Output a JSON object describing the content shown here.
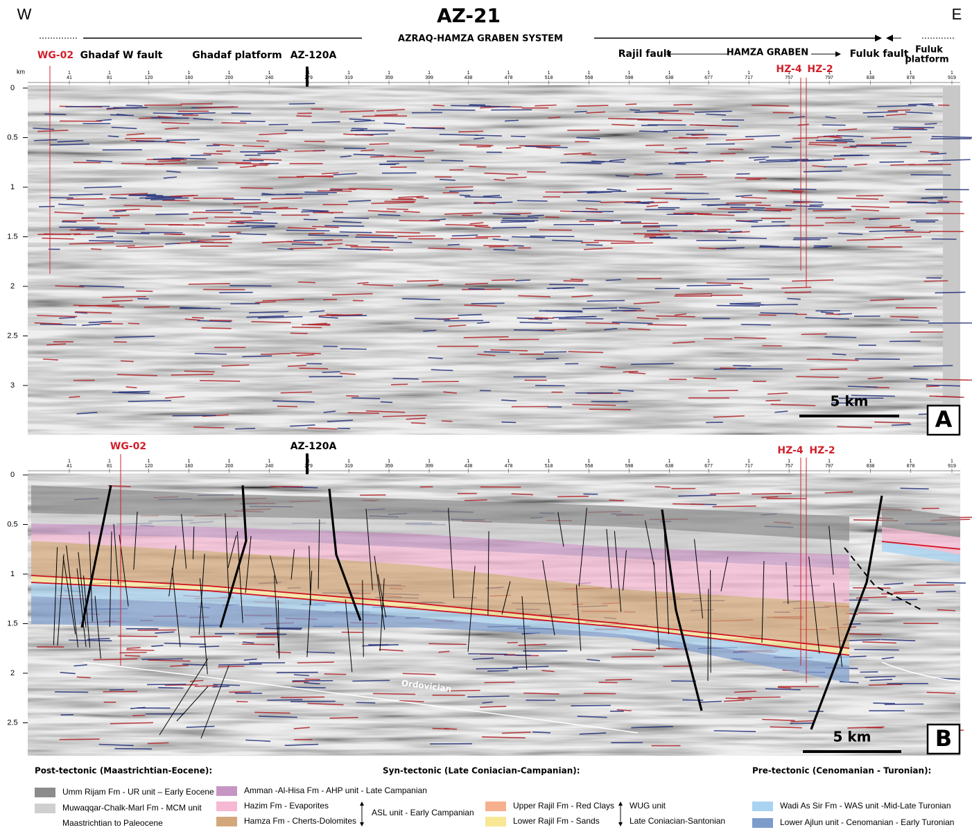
{
  "header": {
    "west": "W",
    "east": "E",
    "title": "AZ-21",
    "subtitle": "AZRAQ-HAMZA GRABEN SYSTEM"
  },
  "traces": {
    "prefix": "1",
    "ticks": [
      41,
      81,
      120,
      160,
      200,
      240,
      279,
      319,
      359,
      399,
      438,
      478,
      518,
      558,
      598,
      638,
      677,
      717,
      757,
      797,
      838,
      878,
      919
    ]
  },
  "panel_a": {
    "unit": "km",
    "depth_ticks": [
      0,
      0.5,
      1,
      1.5,
      2,
      2.5,
      3
    ],
    "labels": {
      "wg02": "WG-02",
      "ghadaf_w_fault": "Ghadaf W fault",
      "ghadaf_platform": "Ghadaf platform",
      "az120a": "AZ-120A",
      "rajil_fault": "Rajil fault",
      "hamza_graben": "HAMZA GRABEN",
      "fuluk_fault": "Fuluk fault",
      "fuluk_platform": [
        "Fuluk",
        "platform"
      ],
      "hz4": "HZ-4",
      "hz2": "HZ-2"
    },
    "scale_bar": "5 km",
    "letter": "A"
  },
  "panel_b": {
    "depth_ticks": [
      0,
      0.5,
      1,
      1.5,
      2,
      2.5
    ],
    "labels": {
      "wg02": "WG-02",
      "az120a": "AZ-120A",
      "hz4": "HZ-4",
      "hz2": "HZ-2",
      "ordovician": "Ordovician"
    },
    "scale_bar": "5 km",
    "letter": "B"
  },
  "legend": {
    "headings": [
      "Post-tectonic (Maastrichtian-Eocene):",
      "Syn-tectonic (Late Coniacian-Campanian):",
      "Pre-tectonic (Cenomanian - Turonian):"
    ],
    "units": [
      {
        "text": "Umm Rijam Fm - UR unit – Early Eocene",
        "color": "#8c8c8c"
      },
      {
        "text": "Muwaqqar-Chalk-Marl Fm - MCM unit",
        "extra": "Maastrichtian to Paleocene",
        "color": "#cfcfcf"
      },
      {
        "text": "Amman -Al-Hisa Fm - AHP unit - Late Campanian",
        "color": "#c795c4"
      },
      {
        "text": "Hazim Fm - Evaporites",
        "color": "#f6b8d2"
      },
      {
        "text": "Hamza Fm - Cherts-Dolomites",
        "color": "#d4a77a"
      },
      {
        "text": "Upper Rajil Fm - Red Clays",
        "color": "#f7b08f"
      },
      {
        "text": "Lower Rajil Fm - Sands",
        "color": "#f8e795"
      },
      {
        "text": "Wadi As Sir Fm - WAS unit -Mid-Late Turonian",
        "color": "#a9d3f1"
      },
      {
        "text": "Lower Ajlun unit - Cenomanian - Early Turonian",
        "color": "#7d9ccc"
      }
    ],
    "brackets": [
      {
        "text": "ASL unit - Early Campanian"
      },
      {
        "text": "WUG unit",
        "extra": "Late Coniacian-Santonian"
      }
    ]
  }
}
